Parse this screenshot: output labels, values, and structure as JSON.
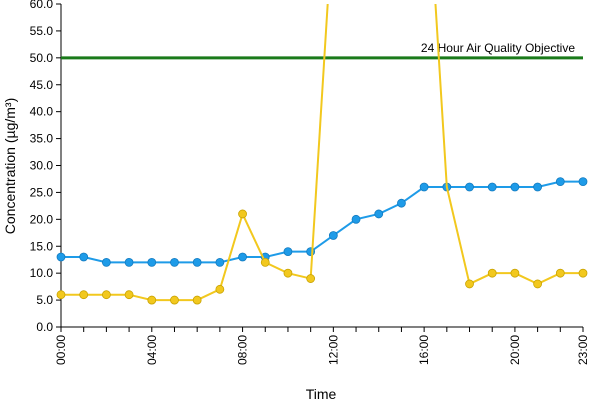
{
  "chart_data": {
    "type": "line",
    "xlabel": "Time",
    "ylabel": "Concentration (µg/m³)",
    "ylim": [
      0,
      60
    ],
    "y_ticks": [
      "0.0",
      "5.0",
      "10.0",
      "15.0",
      "20.0",
      "25.0",
      "30.0",
      "35.0",
      "40.0",
      "45.0",
      "50.0",
      "55.0",
      "60.0"
    ],
    "y_tick_values": [
      0,
      5,
      10,
      15,
      20,
      25,
      30,
      35,
      40,
      45,
      50,
      55,
      60
    ],
    "x": [
      "00:00",
      "01:00",
      "02:00",
      "03:00",
      "04:00",
      "05:00",
      "06:00",
      "07:00",
      "08:00",
      "09:00",
      "10:00",
      "11:00",
      "12:00",
      "13:00",
      "14:00",
      "15:00",
      "16:00",
      "17:00",
      "18:00",
      "19:00",
      "20:00",
      "21:00",
      "22:00",
      "23:00"
    ],
    "x_tick_labels": [
      "00:00",
      "04:00",
      "08:00",
      "12:00",
      "16:00",
      "20:00",
      "23:00"
    ],
    "x_tick_hours": [
      0,
      4,
      8,
      12,
      16,
      20,
      23
    ],
    "grid": false,
    "series": [
      {
        "color": "#1e9be8",
        "values": [
          13,
          13,
          12,
          12,
          12,
          12,
          12,
          12,
          13,
          13,
          14,
          14,
          17,
          20,
          21,
          23,
          26,
          26,
          26,
          26,
          26,
          26,
          27,
          27
        ]
      },
      {
        "color": "#f2c81e",
        "values": [
          6,
          6,
          6,
          6,
          5,
          5,
          5,
          7,
          21,
          12,
          10,
          9,
          null,
          null,
          null,
          null,
          null,
          null,
          8,
          10,
          10,
          8,
          10,
          10
        ],
        "offscale_segments": [
          {
            "from_hour": 11,
            "from_value": 9,
            "cross_top_hour": 11.75
          },
          {
            "to_hour": 18,
            "to_value": 8,
            "cross_top_hour": 16.5,
            "below_top_at_hour": 17,
            "below_top_value": 26
          }
        ]
      }
    ],
    "annotations": [
      {
        "text": "24 Hour Air Quality Objective",
        "value": 50,
        "color": "#1a7a1a"
      }
    ]
  }
}
